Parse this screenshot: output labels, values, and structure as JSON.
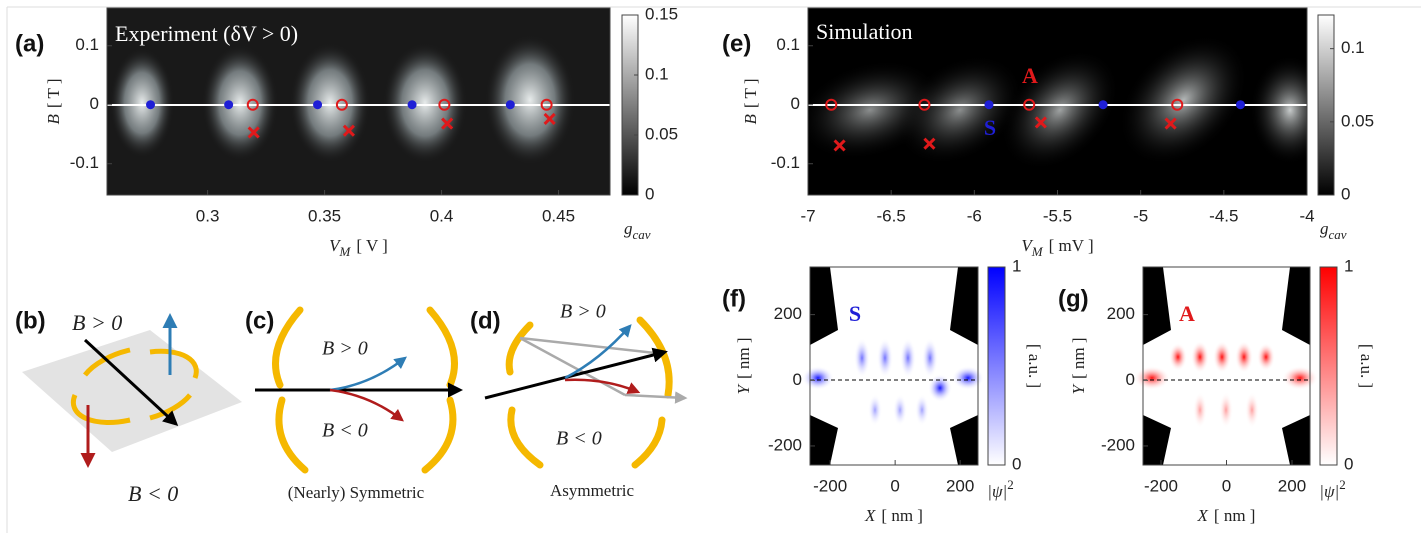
{
  "panels": {
    "b": {
      "label": "(b)",
      "b_pos": "B > 0",
      "b_neg": "B < 0"
    },
    "c": {
      "label": "(c)",
      "b_pos": "B > 0",
      "b_neg": "B < 0",
      "caption": "(Nearly) Symmetric"
    },
    "d": {
      "label": "(d)",
      "b_pos": "B > 0",
      "b_neg": "B < 0",
      "caption": "Asymmetric"
    }
  },
  "chart_data": [
    {
      "type": "heatmap",
      "panel_label": "(a)",
      "title": "Experiment (δV > 0)",
      "xlim": [
        0.257,
        0.472
      ],
      "xticks": [
        0.3,
        0.35,
        0.4,
        0.45
      ],
      "ylim": [
        -0.153,
        0.164
      ],
      "yticks": [
        -0.1,
        0,
        0.1
      ],
      "x_label": {
        "symbol": "V",
        "subscript": "M",
        "unit": "[ V ]"
      },
      "y_label": {
        "symbol": "B",
        "unit": "[ T ]"
      },
      "series": [
        {
          "marker": "dot",
          "color": "#1f1fd6",
          "x": [
            0.2756,
            0.309,
            0.347,
            0.3874,
            0.4294
          ],
          "y": [
            0,
            0,
            0,
            0,
            0
          ]
        },
        {
          "marker": "ring",
          "color": "#e0191b",
          "x": [
            0.3193,
            0.3574,
            0.4012,
            0.4449
          ],
          "y": [
            0,
            0,
            0,
            0
          ]
        },
        {
          "marker": "cross",
          "color": "#e0191b",
          "x": [
            0.3197,
            0.3604,
            0.4024,
            0.4462
          ],
          "y": [
            -0.047,
            -0.044,
            -0.032,
            -0.024
          ]
        }
      ],
      "colorbar": {
        "lim": [
          0,
          0.15
        ],
        "ticks": [
          0,
          0.05,
          0.1,
          0.15
        ],
        "colors": [
          "#000000",
          "#ffffff"
        ],
        "label": {
          "symbol": "g",
          "subscript": "cav"
        }
      }
    },
    {
      "type": "heatmap",
      "panel_label": "(e)",
      "title": "Simulation",
      "xlim": [
        -7,
        -4
      ],
      "xticks": [
        -7,
        -6.5,
        -6,
        -5.5,
        -5,
        -4.5,
        -4
      ],
      "ylim": [
        -0.153,
        0.164
      ],
      "yticks": [
        -0.1,
        0,
        0.1
      ],
      "x_label": {
        "symbol": "V",
        "subscript": "M",
        "unit": "[ mV ]"
      },
      "y_label": {
        "symbol": "B",
        "unit": "[ T ]"
      },
      "series": [
        {
          "marker": "dot",
          "color": "#1f1fd6",
          "x": [
            -5.912,
            -5.226,
            -4.4
          ],
          "y": [
            0,
            0,
            0
          ]
        },
        {
          "marker": "ring",
          "color": "#e0191b",
          "x": [
            -6.86,
            -6.3,
            -5.67,
            -4.78
          ],
          "y": [
            0,
            0,
            0,
            0
          ]
        },
        {
          "marker": "cross",
          "color": "#e0191b",
          "x": [
            -6.81,
            -6.27,
            -5.6,
            -4.82
          ],
          "y": [
            -0.069,
            -0.066,
            -0.03,
            -0.032
          ]
        }
      ],
      "annotations": [
        {
          "text": "A",
          "color": "#e0191b"
        },
        {
          "text": "S",
          "color": "#1f1fd6"
        }
      ],
      "colorbar": {
        "lim": [
          0,
          0.123
        ],
        "ticks": [
          0,
          0.05,
          0.1
        ],
        "colors": [
          "#000000",
          "#ffffff"
        ],
        "label": {
          "symbol": "g",
          "subscript": "cav"
        }
      }
    },
    {
      "type": "heatmap",
      "panel_label": "(f)",
      "xlim": [
        -262,
        255
      ],
      "xticks": [
        -200,
        0,
        200
      ],
      "ylim": [
        -258,
        345
      ],
      "yticks": [
        -200,
        0,
        200
      ],
      "x_label": {
        "symbol": "X",
        "unit": "[ nm ]"
      },
      "y_label": {
        "symbol": "Y",
        "unit": "[ nm ]"
      },
      "series": [],
      "annotations": [
        {
          "text": "S",
          "color": "#1f1fd6"
        }
      ],
      "colorbar": {
        "lim": [
          0,
          1
        ],
        "ticks": [
          0,
          1
        ],
        "colors": [
          "#ffffff",
          "#0000ff"
        ],
        "label": {
          "symbol": "|ψ|",
          "superscript": "2"
        },
        "unit": "[ a.u. ]"
      }
    },
    {
      "type": "heatmap",
      "panel_label": "(g)",
      "xlim": [
        -255,
        255
      ],
      "xticks": [
        -200,
        0,
        200
      ],
      "ylim": [
        -258,
        345
      ],
      "yticks": [
        -200,
        0,
        200
      ],
      "x_label": {
        "symbol": "X",
        "unit": "[ nm ]"
      },
      "y_label": {
        "symbol": "Y",
        "unit": "[ nm ]"
      },
      "series": [],
      "annotations": [
        {
          "text": "A",
          "color": "#e0191b"
        }
      ],
      "colorbar": {
        "lim": [
          0,
          1
        ],
        "ticks": [
          0,
          1
        ],
        "colors": [
          "#ffffff",
          "#ff0000"
        ],
        "label": {
          "symbol": "|ψ|",
          "superscript": "2"
        },
        "unit": "[ a.u. ]"
      }
    }
  ]
}
